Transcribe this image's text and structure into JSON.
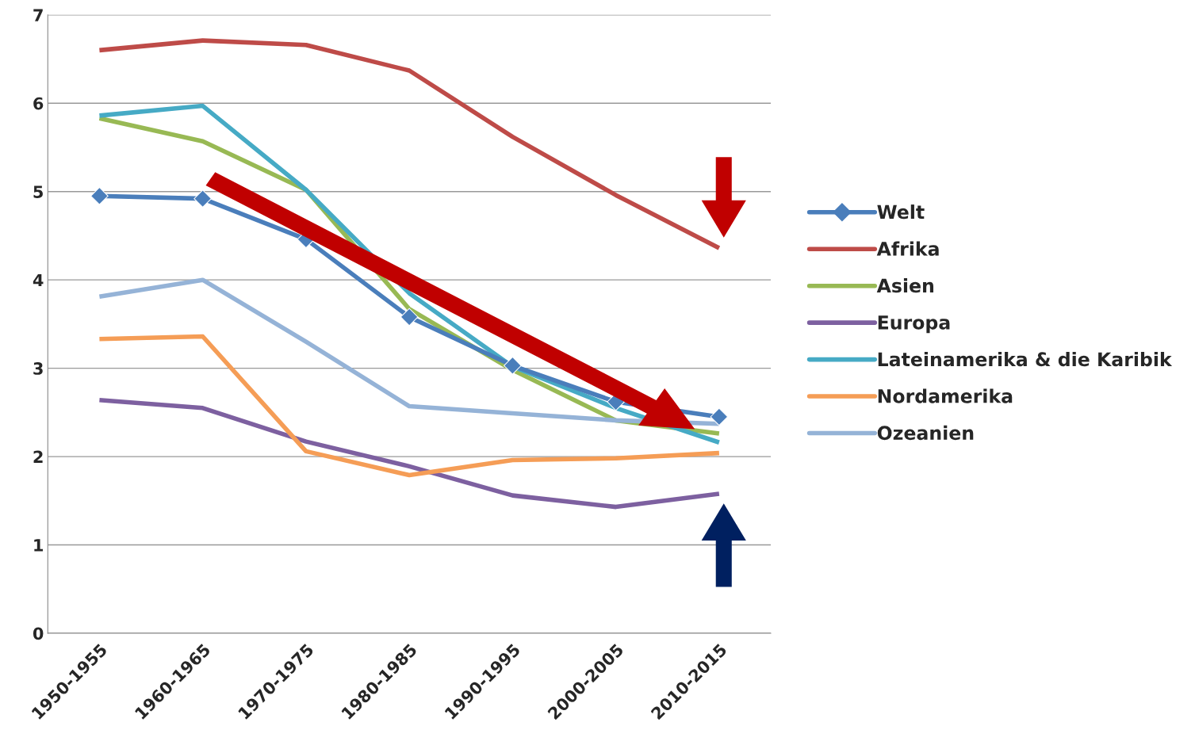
{
  "chart_data": {
    "type": "line",
    "categories": [
      "1950-1955",
      "1960-1965",
      "1970-1975",
      "1980-1985",
      "1990-1995",
      "2000-2005",
      "2010-2015"
    ],
    "series": [
      {
        "name": "Welt",
        "color": "#4a7ebb",
        "marker": "diamond",
        "values": [
          4.95,
          4.92,
          4.46,
          3.58,
          3.03,
          2.62,
          2.45
        ]
      },
      {
        "name": "Afrika",
        "color": "#be4b48",
        "values": [
          6.6,
          6.71,
          6.66,
          6.37,
          5.62,
          4.96,
          4.36
        ]
      },
      {
        "name": "Asien",
        "color": "#98b954",
        "values": [
          5.83,
          5.57,
          5.02,
          3.67,
          2.98,
          2.41,
          2.26
        ]
      },
      {
        "name": "Europa",
        "color": "#7d60a0",
        "values": [
          2.64,
          2.55,
          2.17,
          1.89,
          1.56,
          1.43,
          1.58
        ]
      },
      {
        "name": "Lateinamerika & die Karibik",
        "color": "#46aac5",
        "values": [
          5.86,
          5.97,
          5.02,
          3.85,
          3.02,
          2.55,
          2.16
        ]
      },
      {
        "name": "Nordamerika",
        "color": "#f59d56",
        "values": [
          3.33,
          3.36,
          2.06,
          1.79,
          1.96,
          1.98,
          2.04
        ]
      },
      {
        "name": "Ozeanien",
        "color": "#95b3d7",
        "values": [
          3.81,
          4.0,
          3.3,
          2.57,
          2.49,
          2.41,
          2.37
        ]
      }
    ],
    "ylim": [
      0,
      7
    ],
    "yticks": [
      0,
      1,
      2,
      3,
      4,
      5,
      6,
      7
    ],
    "grid": "y",
    "legend": "right"
  }
}
